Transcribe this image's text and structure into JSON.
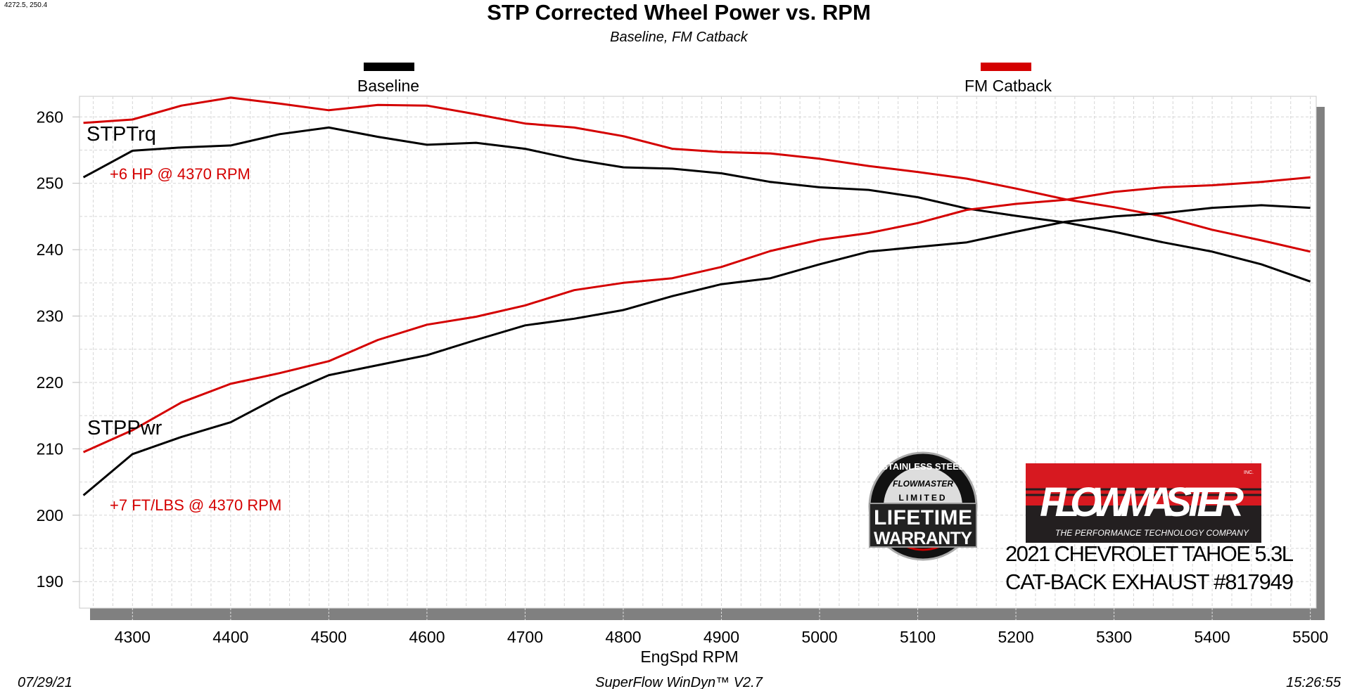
{
  "cursor_readout": "4272.5, 250.4",
  "footer": {
    "date": "07/29/21",
    "software": "SuperFlow WinDyn™ V2.7",
    "time": "15:26:55"
  },
  "annotations": {
    "torque_label": "STPTrq",
    "power_label": "STPPwr",
    "hp_gain": "+6 HP @ 4370 RPM",
    "tq_gain": "+7 FT/LBS @ 4370 RPM",
    "vehicle_line1": "2021 CHEVROLET TAHOE 5.3L",
    "vehicle_line2": "CAT-BACK EXHAUST #817949"
  },
  "logos": {
    "warranty": {
      "arc": "STAINLESS STEEL",
      "brand": "FLOWMASTER",
      "limited": "LIMITED",
      "line1": "LIFETIME",
      "line2": "WARRANTY"
    },
    "flowmaster": {
      "name": "FLOWMASTER",
      "inc": "INC.",
      "tagline": "THE PERFORMANCE TECHNOLOGY COMPANY"
    }
  },
  "chart_data": {
    "type": "line",
    "title": "STP Corrected Wheel Power vs. RPM",
    "subtitle": "Baseline, FM Catback",
    "xlabel": "EngSpd  RPM",
    "ylabel": "",
    "xlim": [
      4246,
      5506
    ],
    "ylim": [
      186,
      263.1
    ],
    "xticks": [
      4300,
      4400,
      4500,
      4600,
      4700,
      4800,
      4900,
      5000,
      5100,
      5200,
      5300,
      5400,
      5500
    ],
    "yticks": [
      190,
      200,
      210,
      220,
      230,
      240,
      250,
      260
    ],
    "grid": true,
    "legend_position": "top",
    "colors": {
      "Baseline": "#000000",
      "FM Catback": "#d40000"
    },
    "x": [
      4250,
      4300,
      4350,
      4400,
      4450,
      4500,
      4550,
      4600,
      4650,
      4700,
      4750,
      4800,
      4850,
      4900,
      4950,
      5000,
      5050,
      5100,
      5150,
      5200,
      5250,
      5300,
      5350,
      5400,
      5450,
      5500
    ],
    "series": [
      {
        "name": "Baseline",
        "quantity": "STPTrq",
        "values": [
          250.9,
          254.9,
          255.4,
          255.7,
          257.4,
          258.4,
          257.0,
          255.8,
          256.1,
          255.2,
          253.6,
          252.4,
          252.2,
          251.5,
          250.2,
          249.4,
          249.0,
          247.9,
          246.2,
          245.1,
          244.1,
          242.7,
          241.1,
          239.7,
          237.8,
          235.2
        ]
      },
      {
        "name": "FM Catback",
        "quantity": "STPTrq",
        "values": [
          259.1,
          259.6,
          261.7,
          262.9,
          262.0,
          261.0,
          261.8,
          261.7,
          260.4,
          259.0,
          258.4,
          257.1,
          255.2,
          254.7,
          254.5,
          253.7,
          252.6,
          251.7,
          250.7,
          249.2,
          247.6,
          246.4,
          245.0,
          243.0,
          241.4,
          239.7
        ]
      },
      {
        "name": "Baseline",
        "quantity": "STPPwr",
        "values": [
          203.0,
          209.2,
          211.8,
          214.0,
          217.9,
          221.1,
          222.6,
          224.1,
          226.4,
          228.6,
          229.6,
          230.9,
          233.0,
          234.8,
          235.7,
          237.8,
          239.7,
          240.4,
          241.1,
          242.7,
          244.2,
          245.0,
          245.5,
          246.3,
          246.7,
          246.3
        ]
      },
      {
        "name": "FM Catback",
        "quantity": "STPPwr",
        "values": [
          209.5,
          212.8,
          217.0,
          219.8,
          221.4,
          223.2,
          226.4,
          228.7,
          229.9,
          231.6,
          233.9,
          235.0,
          235.7,
          237.4,
          239.8,
          241.5,
          242.5,
          244.0,
          246.0,
          246.9,
          247.5,
          248.7,
          249.4,
          249.7,
          250.2,
          250.9
        ]
      }
    ]
  }
}
